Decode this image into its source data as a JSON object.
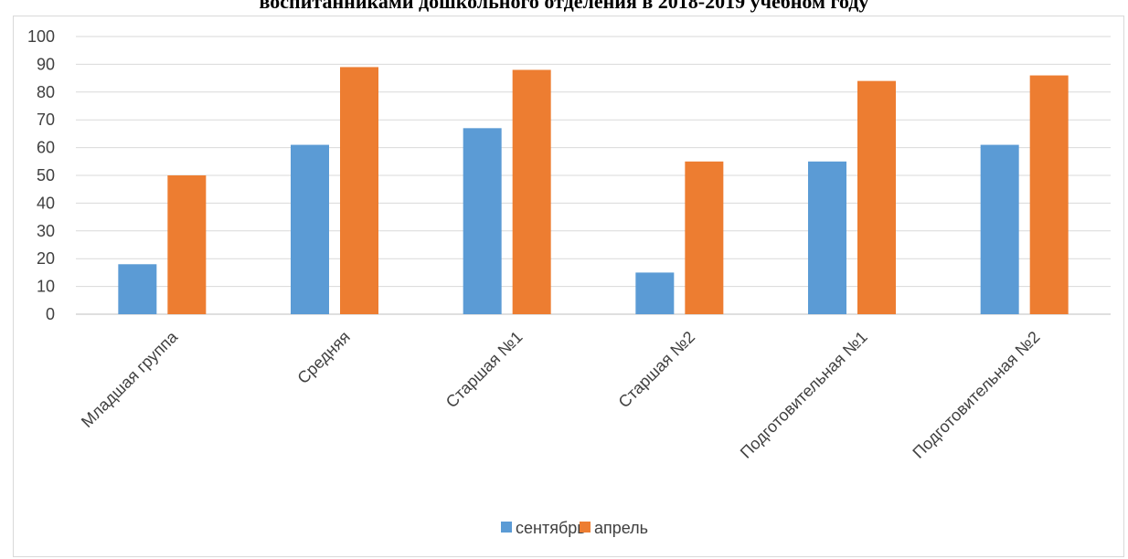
{
  "chart_data": {
    "type": "bar",
    "title": "воспитанниками дошкольного отделения в 2018-2019 учебном году",
    "xlabel": "",
    "ylabel": "",
    "ylim": [
      0,
      100
    ],
    "yticks": [
      0,
      10,
      20,
      30,
      40,
      50,
      60,
      70,
      80,
      90,
      100
    ],
    "grid": true,
    "legend_position": "bottom",
    "categories": [
      "Младшая группа",
      "Средняя",
      "Старшая №1",
      "Старшая №2",
      "Подготовительная №1",
      "Подготовительная №2"
    ],
    "series": [
      {
        "name": "сентябрь",
        "color": "#5b9bd5",
        "values": [
          18,
          61,
          67,
          15,
          55,
          61
        ]
      },
      {
        "name": "апрель",
        "color": "#ed7d31",
        "values": [
          50,
          89,
          88,
          55,
          84,
          86
        ]
      }
    ]
  }
}
